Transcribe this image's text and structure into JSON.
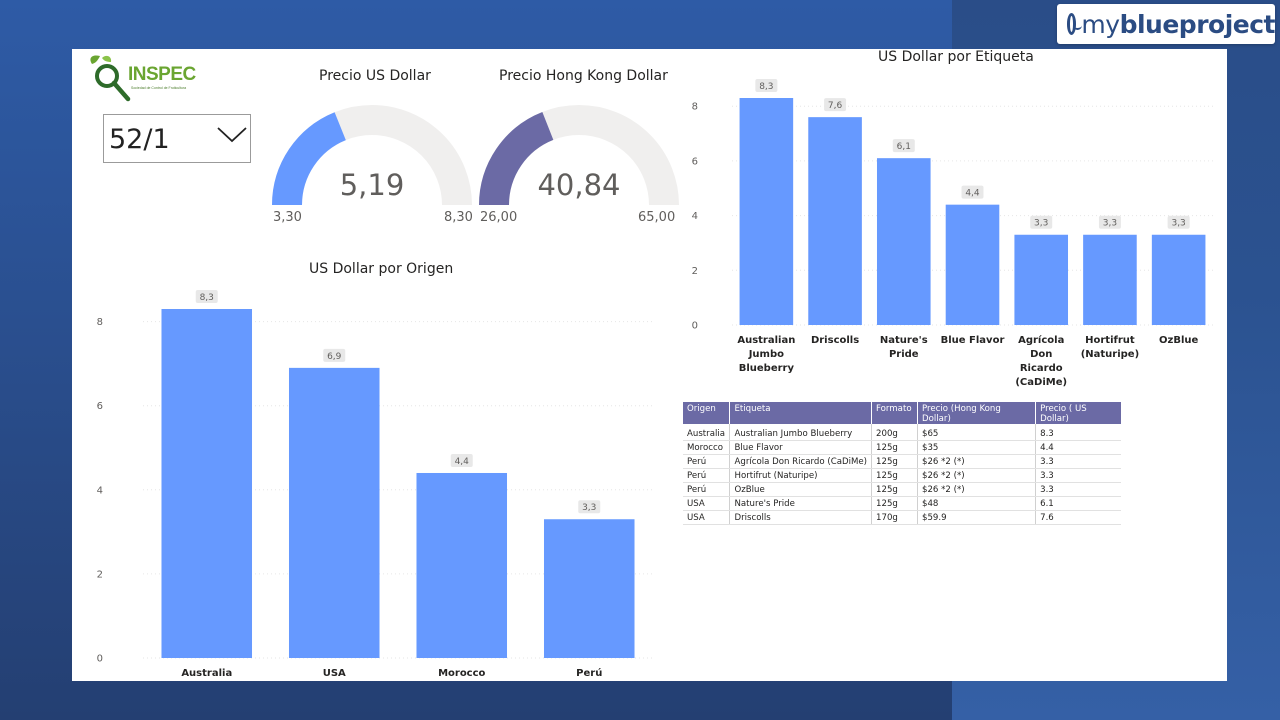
{
  "brand": {
    "text_light": "my",
    "text_bold": "blue",
    "text_end": "project"
  },
  "logo": {
    "name": "INSPEC",
    "subtitle": "Sociedad de Control de Fruticultura"
  },
  "slicer": {
    "value": "52/1"
  },
  "gauges": [
    {
      "title": "Precio US Dollar",
      "value": "5,19",
      "min": "3,30",
      "max": "8,30",
      "value_num": 5.19,
      "min_num": 3.3,
      "max_num": 8.3,
      "color": "#6699ff"
    },
    {
      "title": "Precio Hong Kong Dollar",
      "value": "40,84",
      "min": "26,00",
      "max": "65,00",
      "value_num": 40.84,
      "min_num": 26.0,
      "max_num": 65.0,
      "color": "#6b6aa5"
    }
  ],
  "chart_data": [
    {
      "id": "etiqueta",
      "type": "bar",
      "title": "US Dollar por Etiqueta",
      "categories": [
        [
          "Australian",
          "Jumbo",
          "Blueberry"
        ],
        [
          "Driscolls"
        ],
        [
          "Nature's",
          "Pride"
        ],
        [
          "Blue Flavor"
        ],
        [
          "Agrícola",
          "Don",
          "Ricardo",
          "(CaDiMe)"
        ],
        [
          "Hortifrut",
          "(Naturipe)"
        ],
        [
          "OzBlue"
        ]
      ],
      "values": [
        8.3,
        7.6,
        6.1,
        4.4,
        3.3,
        3.3,
        3.3
      ],
      "labels": [
        "8,3",
        "7,6",
        "6,1",
        "4,4",
        "3,3",
        "3,3",
        "3,3"
      ],
      "yticks": [
        "0",
        "2",
        "4",
        "6",
        "8"
      ],
      "ylim": [
        0,
        8.3
      ],
      "color": "#6699ff"
    },
    {
      "id": "origen",
      "type": "bar",
      "title": "US Dollar por Origen",
      "categories": [
        [
          "Australia"
        ],
        [
          "USA"
        ],
        [
          "Morocco"
        ],
        [
          "Perú"
        ]
      ],
      "values": [
        8.3,
        6.9,
        4.4,
        3.3
      ],
      "labels": [
        "8,3",
        "6,9",
        "4,4",
        "3,3"
      ],
      "yticks": [
        "0",
        "2",
        "4",
        "6",
        "8"
      ],
      "ylim": [
        0,
        8.3
      ],
      "color": "#6699ff"
    }
  ],
  "table": {
    "headers": [
      "Origen",
      "Etiqueta",
      "Formato",
      "Precio (Hong Kong Dollar)",
      "Precio ( US Dollar)"
    ],
    "rows": [
      [
        "Australia",
        "Australian Jumbo Blueberry",
        "200g",
        "$65",
        "8.3"
      ],
      [
        "Morocco",
        "Blue Flavor",
        "125g",
        "$35",
        "4.4"
      ],
      [
        "Perú",
        "Agrícola Don Ricardo (CaDiMe)",
        "125g",
        "$26 *2 (*)",
        "3.3"
      ],
      [
        "Perú",
        "Hortifrut (Naturipe)",
        "125g",
        "$26 *2 (*)",
        "3.3"
      ],
      [
        "Perú",
        "OzBlue",
        "125g",
        "$26 *2 (*)",
        "3.3"
      ],
      [
        "USA",
        "Nature's Pride",
        "125g",
        "$48",
        "6.1"
      ],
      [
        "USA",
        "Driscolls",
        "170g",
        "$59.9",
        "7.6"
      ]
    ]
  }
}
